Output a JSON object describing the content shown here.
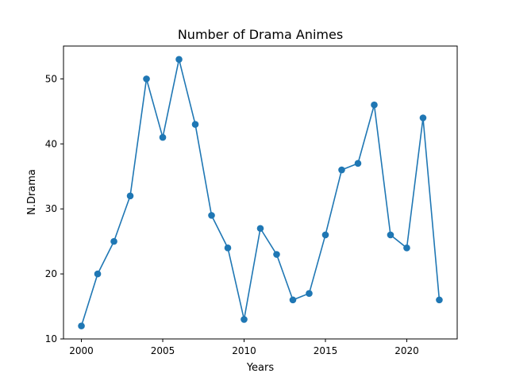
{
  "chart_data": {
    "type": "line",
    "title": "Number of Drama Animes",
    "xlabel": "Years",
    "ylabel": "N.Drama",
    "x": [
      2000,
      2001,
      2002,
      2003,
      2004,
      2005,
      2006,
      2007,
      2008,
      2009,
      2010,
      2011,
      2012,
      2013,
      2014,
      2015,
      2016,
      2017,
      2018,
      2019,
      2020,
      2021,
      2022
    ],
    "series": [
      {
        "values": [
          12,
          20,
          25,
          32,
          50,
          41,
          53,
          43,
          29,
          24,
          13,
          27,
          23,
          16,
          17,
          26,
          36,
          37,
          46,
          26,
          24,
          44,
          16
        ],
        "color": "#1f77b4",
        "marker": "circle"
      }
    ],
    "xlim": [
      1998.9,
      2023.1
    ],
    "ylim": [
      10,
      55.05
    ],
    "xticks": [
      2000,
      2005,
      2010,
      2015,
      2020
    ],
    "yticks": [
      10,
      20,
      30,
      40,
      50
    ],
    "grid": false,
    "legend": "none"
  }
}
